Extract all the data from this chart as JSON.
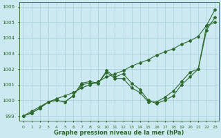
{
  "x": [
    0,
    1,
    2,
    3,
    4,
    5,
    6,
    7,
    8,
    9,
    10,
    11,
    12,
    13,
    14,
    15,
    16,
    17,
    18,
    19,
    20,
    21,
    22,
    23
  ],
  "line1_straight": [
    999.0,
    999.3,
    999.6,
    999.9,
    1000.1,
    1000.3,
    1000.5,
    1000.8,
    1001.0,
    1001.2,
    1001.5,
    1001.7,
    1001.9,
    1002.2,
    1002.4,
    1002.6,
    1002.9,
    1003.1,
    1003.3,
    1003.6,
    1003.8,
    1004.1,
    1004.8,
    1005.8
  ],
  "line2_curved": [
    999.0,
    999.2,
    999.5,
    999.9,
    1000.0,
    999.9,
    1000.3,
    1001.1,
    1001.2,
    1001.1,
    1001.9,
    1001.5,
    1001.7,
    1001.1,
    1000.7,
    1000.0,
    999.8,
    1000.0,
    1000.3,
    1001.0,
    1001.5,
    1002.0,
    1004.8,
    1005.0
  ],
  "line3_curved": [
    999.0,
    999.2,
    999.5,
    999.9,
    1000.0,
    999.9,
    1000.3,
    1001.0,
    1001.1,
    1001.1,
    1001.8,
    1001.4,
    1001.4,
    1000.8,
    1000.5,
    999.9,
    999.9,
    1000.2,
    1000.6,
    1001.2,
    1001.8,
    1002.0,
    1004.5,
    1005.3
  ],
  "line_color": "#2d6a2d",
  "bg_color": "#cce8f0",
  "grid_color": "#a8d0dc",
  "title": "Graphe pression niveau de la mer (hPa)",
  "ylim": [
    998.7,
    1006.3
  ],
  "yticks": [
    999,
    1000,
    1001,
    1002,
    1003,
    1004,
    1005,
    1006
  ],
  "marker": "D",
  "marker_size": 2.0,
  "line_width": 0.8
}
